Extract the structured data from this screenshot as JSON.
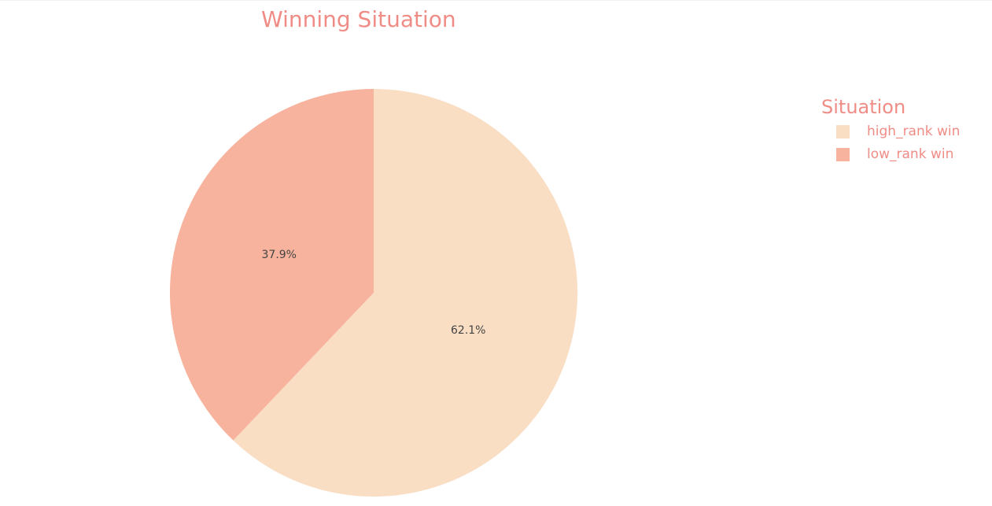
{
  "chart_data": {
    "type": "pie",
    "title": "Winning Situation",
    "legend_title": "Situation",
    "legend_position": "right",
    "slices": [
      {
        "label": "high_rank win",
        "value": 62.1,
        "text": "62.1%",
        "color": "#f9dec4"
      },
      {
        "label": "low_rank win",
        "value": 37.9,
        "text": "37.9%",
        "color": "#f7b39d"
      }
    ]
  },
  "colors": {
    "title": "#f08c86",
    "legend_text": "#f08c86",
    "slice_label": "#444444"
  }
}
